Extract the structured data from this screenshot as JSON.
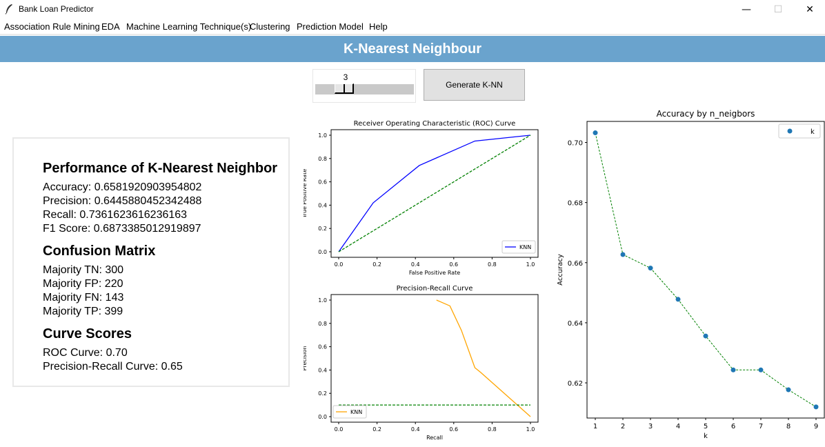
{
  "window": {
    "title": "Bank Loan Predictor",
    "minimize": "—",
    "maximize": "☐",
    "close": "✕"
  },
  "menu": [
    "Association Rule Mining",
    "EDA",
    "Machine Learning Technique(s)",
    "Clustering",
    "Prediction Model",
    "Help"
  ],
  "banner": {
    "title": "K-Nearest Neighbour"
  },
  "slider": {
    "value": "3"
  },
  "generate_button": {
    "label": "Generate K-NN"
  },
  "performance": {
    "heading": "Performance of K-Nearest Neighbor",
    "accuracy": "Accuracy: 0.6581920903954802",
    "precision": "Precision: 0.6445880452342488",
    "recall": "Recall: 0.7361623616236163",
    "f1": "F1 Score: 0.6873385012919897"
  },
  "confusion": {
    "heading": "Confusion Matrix",
    "tn": "Majority TN: 300",
    "fp": "Majority FP: 220",
    "fn": "Majority FN: 143",
    "tp": "Majority TP: 399"
  },
  "curve_scores": {
    "heading": "Curve Scores",
    "roc": "ROC Curve: 0.70",
    "pr": "Precision-Recall Curve: 0.65"
  },
  "colors": {
    "banner": "#6aa3cd",
    "knn_roc": "#0000ff",
    "knn_pr": "#ffa500",
    "baseline": "#008000",
    "accuracy_points": "#1f77b4"
  },
  "chart_data": [
    {
      "type": "line",
      "title": "Receiver Operating Characteristic (ROC) Curve",
      "xlabel": "False Positive Rate",
      "ylabel": "True Positive Rate",
      "xlim": [
        0,
        1
      ],
      "ylim": [
        0,
        1
      ],
      "ticks": [
        "0.0",
        "0.2",
        "0.4",
        "0.6",
        "0.8",
        "1.0"
      ],
      "legend": "lower right",
      "series": [
        {
          "name": "KNN",
          "x": [
            0.0,
            0.18,
            0.42,
            0.71,
            1.0
          ],
          "y": [
            0.0,
            0.42,
            0.74,
            0.95,
            1.0
          ],
          "color": "#0000ff",
          "style": "solid"
        },
        {
          "x": [
            0.0,
            1.0
          ],
          "y": [
            0.0,
            1.0
          ],
          "color": "#008000",
          "style": "dashed"
        }
      ]
    },
    {
      "type": "line",
      "title": "Precision-Recall Curve",
      "xlabel": "Recall",
      "ylabel": "Precision",
      "xlim": [
        0,
        1
      ],
      "ylim": [
        0,
        1
      ],
      "ticks": [
        "0.0",
        "0.2",
        "0.4",
        "0.6",
        "0.8",
        "1.0"
      ],
      "legend": "lower left",
      "series": [
        {
          "name": "KNN",
          "x": [
            0.51,
            0.58,
            0.64,
            0.71,
            0.74,
            1.0
          ],
          "y": [
            1.0,
            0.95,
            0.74,
            0.42,
            0.38,
            0.0
          ],
          "color": "#ffa500",
          "style": "solid"
        },
        {
          "x": [
            0.0,
            1.0
          ],
          "y": [
            0.1,
            0.1
          ],
          "color": "#008000",
          "style": "dashed"
        }
      ]
    },
    {
      "type": "scatter",
      "title": "Accuracy by n_neigbors",
      "xlabel": "k",
      "ylabel": "Accuracy",
      "x": [
        1,
        2,
        3,
        4,
        5,
        6,
        7,
        8,
        9
      ],
      "y": [
        0.7032,
        0.6627,
        0.6582,
        0.6478,
        0.6356,
        0.6243,
        0.6243,
        0.6177,
        0.612
      ],
      "yticks": [
        "0.62",
        "0.64",
        "0.66",
        "0.68",
        "0.70"
      ],
      "xticks": [
        "1",
        "2",
        "3",
        "4",
        "5",
        "6",
        "7",
        "8",
        "9"
      ],
      "legend": {
        "label": "k",
        "position": "upper right"
      },
      "point_color": "#1f77b4",
      "line_color": "#008000"
    }
  ]
}
